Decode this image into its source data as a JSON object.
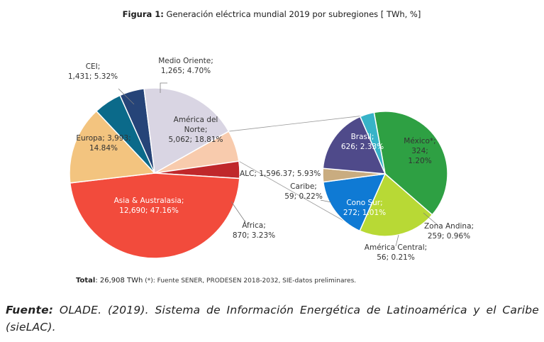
{
  "figure": {
    "title_bold": "Figura 1:",
    "title_rest": " Generación eléctrica mundial 2019 por subregiones [ TWh, %]",
    "total_label": "Total",
    "total_value": ": 26,908 TWh",
    "note": " (*): Fuente SENER, PRODESEN 2018-2032, SIE-datos preliminares."
  },
  "source": {
    "label": "Fuente:",
    "text": " OLADE. (2019). Sistema de Información Energética de Latinoamérica y el Caribe (sieLAC)."
  },
  "chart_data": [
    {
      "type": "pie",
      "title": "",
      "slices": [
        {
          "name": "Medio Oriente",
          "value": 1265,
          "percent": 4.7,
          "label_lines": [
            "Medio Oriente;",
            "1,265; 4.70%"
          ],
          "color": "#264478"
        },
        {
          "name": "América del Norte",
          "value": 5062,
          "percent": 18.81,
          "label_lines": [
            "América del",
            "Norte;",
            "5,062; 18.81%"
          ],
          "color": "#d9d5e3"
        },
        {
          "name": "ALC",
          "value": 1596.37,
          "percent": 5.93,
          "label_lines": [
            "ALC; 1,596.37; 5.93%"
          ],
          "color": "#f8cbad"
        },
        {
          "name": "África",
          "value": 870,
          "percent": 3.23,
          "label_lines": [
            "África;",
            "870; 3.23%"
          ],
          "color": "#c0282b"
        },
        {
          "name": "Asia & Australasia",
          "value": 12690,
          "percent": 47.16,
          "label_lines": [
            "Asia & Australasia;",
            "12,690; 47.16%"
          ],
          "color": "#f24b3c"
        },
        {
          "name": "Europa",
          "value": 3993,
          "percent": 14.84,
          "label_lines": [
            "Europa; 3,993;",
            "14.84%"
          ],
          "color": "#f3c47f"
        },
        {
          "name": "CEI",
          "value": 1431,
          "percent": 5.32,
          "label_lines": [
            "CEI;",
            "1,431; 5.32%"
          ],
          "color": "#0b6a8a"
        }
      ]
    },
    {
      "type": "pie",
      "title": "",
      "slices": [
        {
          "name": "Brasil",
          "value": 626,
          "percent": 2.33,
          "label_lines": [
            "Brasil;",
            "626; 2.33%"
          ],
          "color": "#2ea043"
        },
        {
          "name": "México*",
          "value": 324,
          "percent": 1.2,
          "label_lines": [
            "México*;",
            "324;",
            "1.20%"
          ],
          "color": "#b8d935"
        },
        {
          "name": "Zona Andina",
          "value": 259,
          "percent": 0.96,
          "label_lines": [
            "Zona Andina;",
            "259; 0.96%"
          ],
          "color": "#0f7ad4"
        },
        {
          "name": "América Central",
          "value": 56,
          "percent": 0.21,
          "label_lines": [
            "América Central;",
            "56; 0.21%"
          ],
          "color": "#c9ac80"
        },
        {
          "name": "Cono Sur",
          "value": 272,
          "percent": 1.01,
          "label_lines": [
            "Cono Sur;",
            "272; 1.01%"
          ],
          "color": "#4f4a8a"
        },
        {
          "name": "Caribe",
          "value": 59,
          "percent": 0.22,
          "label_lines": [
            "Caribe;",
            "59; 0.22%"
          ],
          "color": "#37b3c8"
        }
      ]
    }
  ]
}
